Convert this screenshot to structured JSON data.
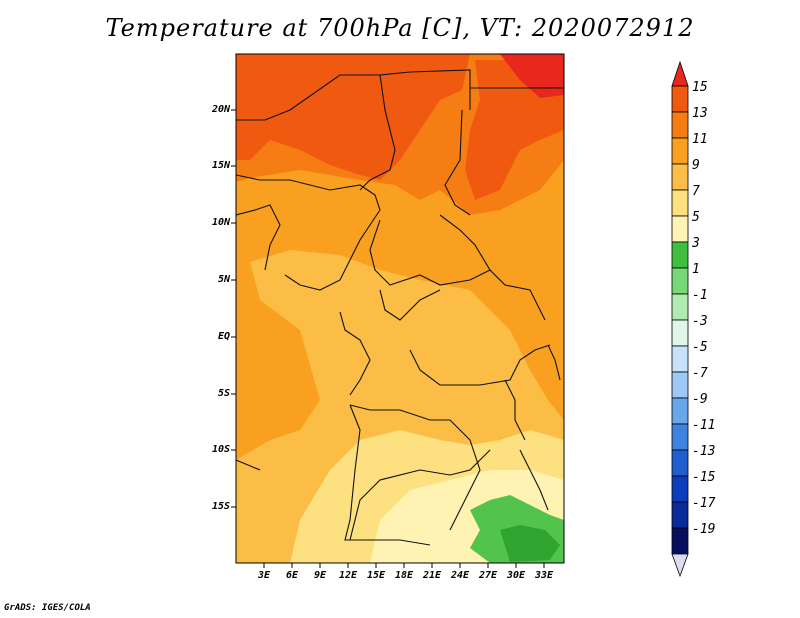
{
  "title": "Temperature at 700hPa [C], VT: 2020072912",
  "credit": "GrADS: IGES/COLA",
  "map": {
    "lat_labels": [
      "20N",
      "15N",
      "10N",
      "5N",
      "EQ",
      "5S",
      "10S",
      "15S"
    ],
    "lon_labels": [
      "3E",
      "6E",
      "9E",
      "12E",
      "15E",
      "18E",
      "21E",
      "24E",
      "27E",
      "30E",
      "33E"
    ]
  },
  "colorbar": {
    "labels": [
      "15",
      "13",
      "11",
      "9",
      "7",
      "5",
      "3",
      "1",
      "-1",
      "-3",
      "-5",
      "-7",
      "-9",
      "-11",
      "-13",
      "-15",
      "-17",
      "-19"
    ],
    "colors": [
      "#e8281c",
      "#f05a10",
      "#f57d14",
      "#f9a021",
      "#fbbd45",
      "#fde07f",
      "#fff3b3",
      "#3fbf3f",
      "#78d878",
      "#b1ebb1",
      "#dff5ea",
      "#c8e3f9",
      "#9dc9f4",
      "#6aa6ec",
      "#3f83e0",
      "#1f5fd0",
      "#0e3ebd",
      "#0a2a9a",
      "#070f5e"
    ],
    "triangle_bottom_color": "#dcdcf5"
  }
}
